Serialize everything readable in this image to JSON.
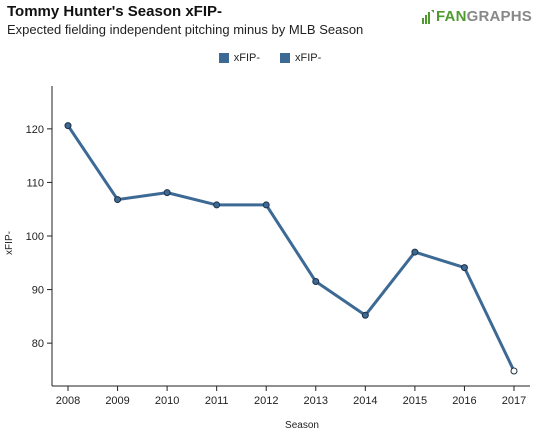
{
  "header": {
    "title": "Tommy Hunter's Season xFIP-",
    "subtitle": "Expected fielding independent pitching minus by MLB Season",
    "logo_text_fan": "FAN",
    "logo_text_graphs": "GRAPHS"
  },
  "legend": [
    {
      "label": "xFIP-",
      "color": "#3d6a94"
    },
    {
      "label": "xFIP-",
      "color": "#3d6a94"
    }
  ],
  "colors": {
    "line": "#3d6a94",
    "marker_fill": "#3d6a94",
    "marker_stroke": "#1f2f44",
    "last_marker_fill": "#ffffff"
  },
  "chart_data": {
    "type": "line",
    "title": "Tommy Hunter's Season xFIP-",
    "subtitle": "Expected fielding independent pitching minus by MLB Season",
    "xlabel": "Season",
    "ylabel": "xFIP-",
    "x": [
      "2008",
      "2009",
      "2010",
      "2011",
      "2012",
      "2013",
      "2014",
      "2015",
      "2016",
      "2017"
    ],
    "series": [
      {
        "name": "xFIP-",
        "values": [
          120.6,
          106.8,
          108.1,
          105.8,
          105.8,
          91.5,
          85.2,
          97.0,
          94.1,
          74.8
        ]
      }
    ],
    "y_ticks": [
      80,
      90,
      100,
      110,
      120
    ],
    "ylim": [
      72,
      128
    ],
    "grid": false,
    "legend_position": "top-center"
  }
}
